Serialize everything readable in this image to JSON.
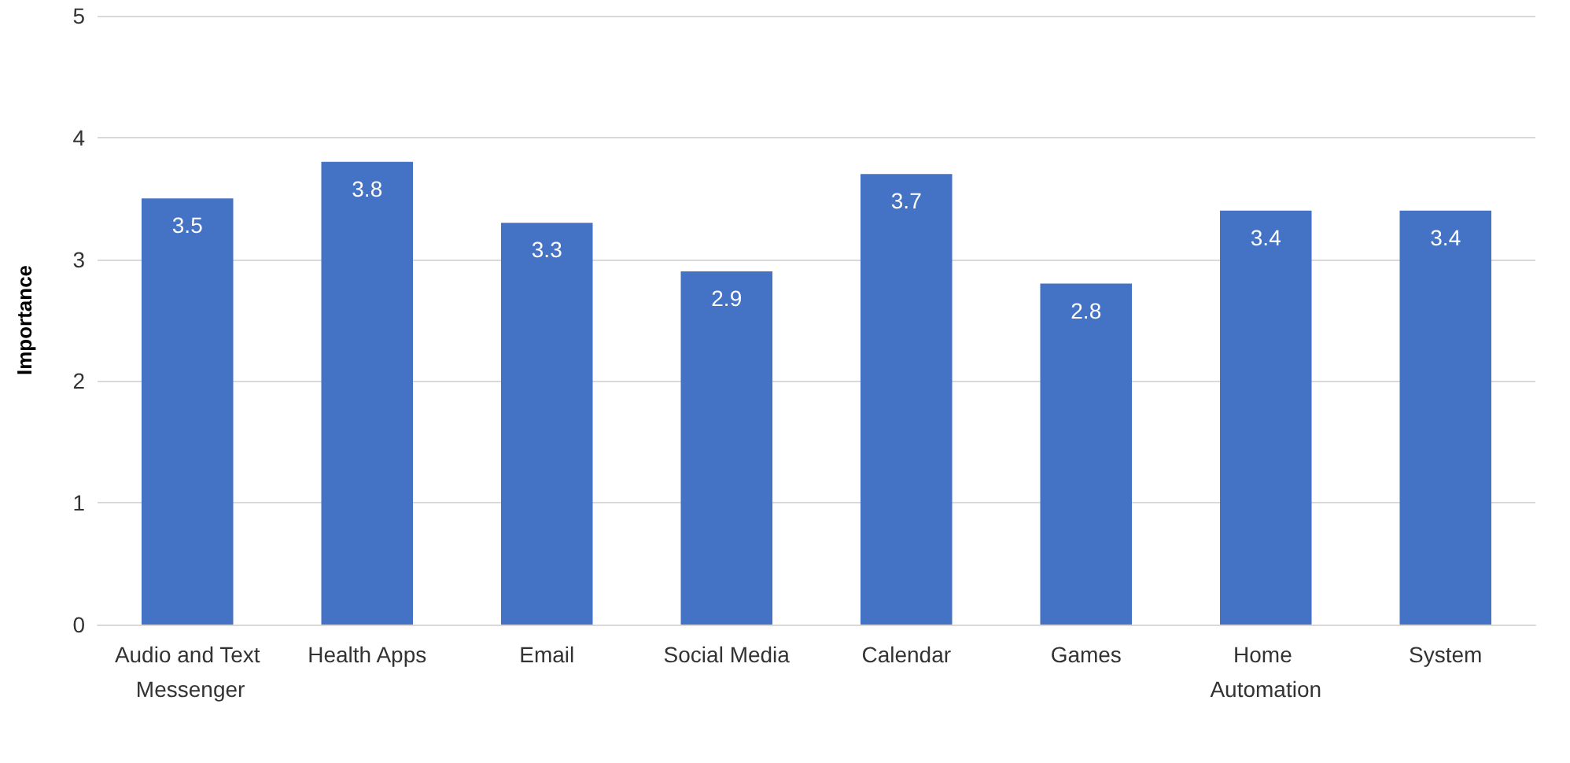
{
  "chart_data": {
    "type": "bar",
    "ylabel": "Importance",
    "categories": [
      "Audio and Text Messenger",
      "Health Apps",
      "Email",
      "Social Media",
      "Calendar",
      "Games",
      "Home Automation",
      "System"
    ],
    "values": [
      3.5,
      3.8,
      3.3,
      2.9,
      3.7,
      2.8,
      3.4,
      3.4
    ],
    "color": "#4472c4",
    "ylim": [
      0,
      5
    ],
    "yticks": [
      0,
      1,
      2,
      3,
      4,
      5
    ],
    "grid": "y",
    "data_labels": true
  }
}
